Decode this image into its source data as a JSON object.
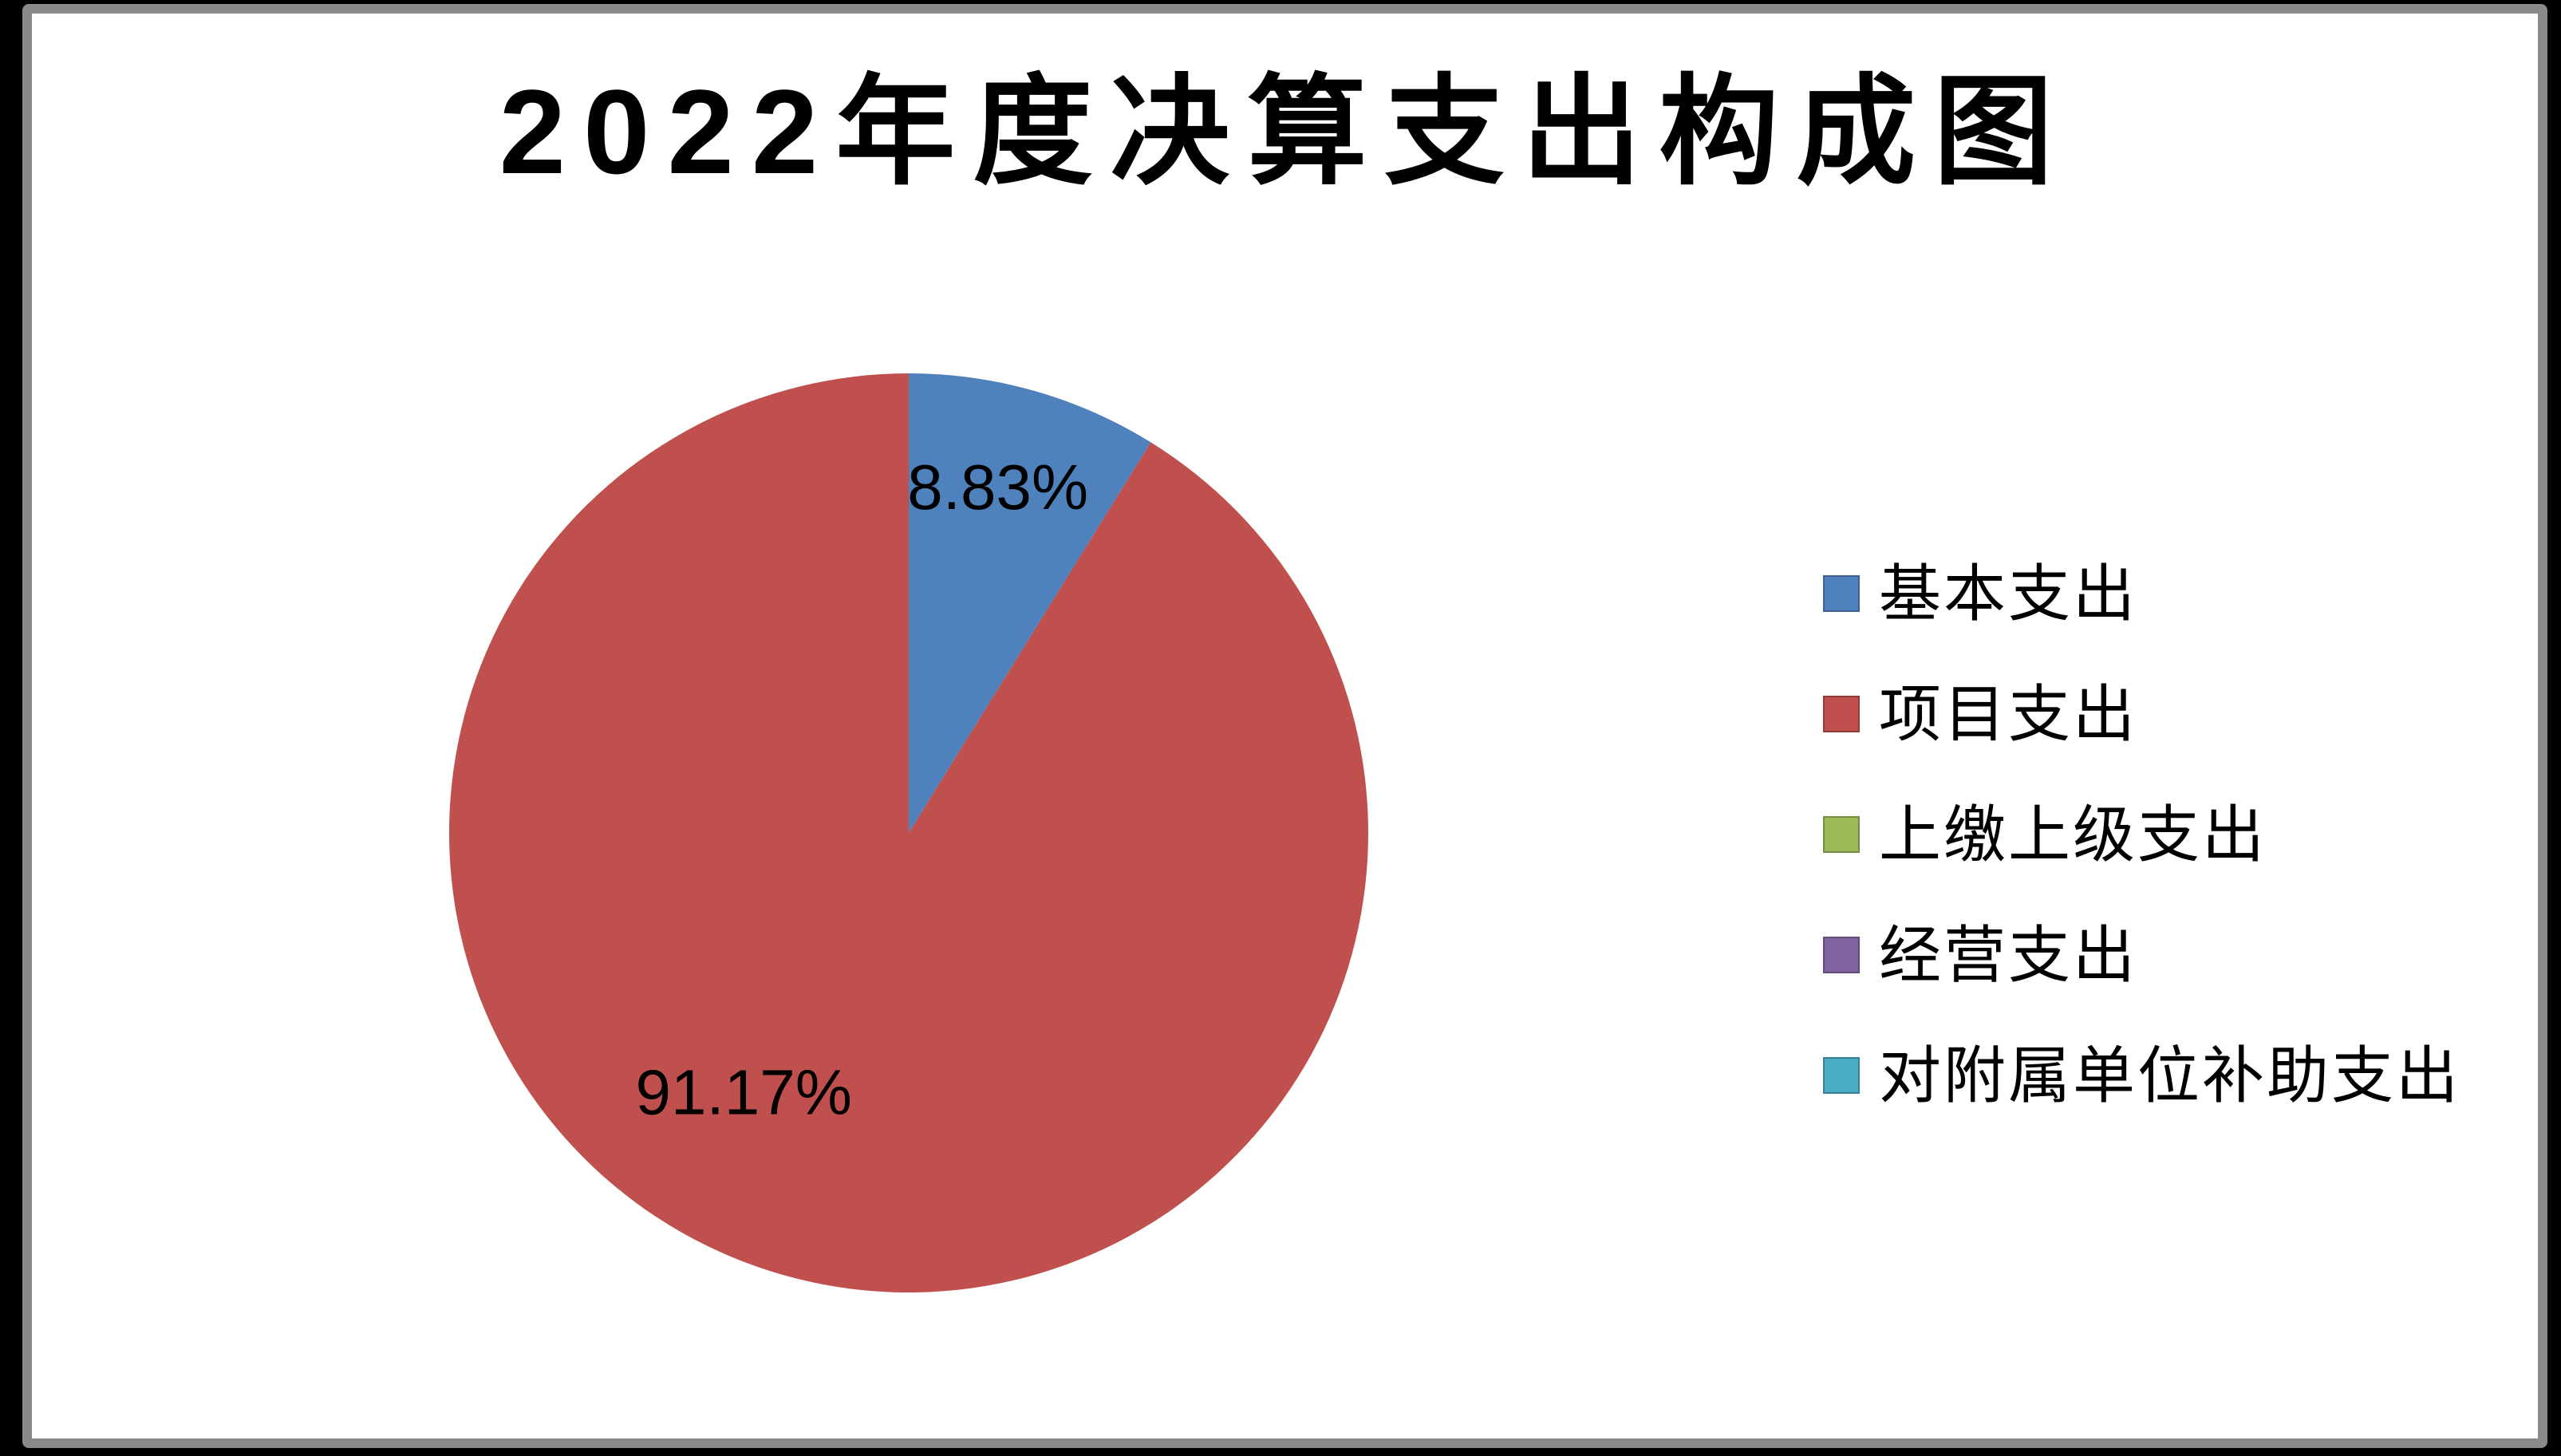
{
  "frame": {
    "page_background": "#000000",
    "chart_background": "#ffffff",
    "border_color": "#8a8a8a"
  },
  "chart_data": {
    "type": "pie",
    "title": "2022年度决算支出构成图",
    "legend_position": "right",
    "start_angle_deg": 0,
    "unit": "percent",
    "slices": [
      {
        "name": "基本支出",
        "value": 8.83,
        "percent_label": "8.83%",
        "color": "#4F81BD",
        "label_dx": 0.194,
        "label_dy": -0.753
      },
      {
        "name": "项目支出",
        "value": 91.17,
        "percent_label": "91.17%",
        "color": "#C0504D",
        "label_dx": -0.359,
        "label_dy": 0.564
      },
      {
        "name": "上缴上级支出",
        "value": 0,
        "color": "#9BBB59"
      },
      {
        "name": "经营支出",
        "value": 0,
        "color": "#8064A2"
      },
      {
        "name": "对附属单位补助支出",
        "value": 0,
        "color": "#4BACC6"
      }
    ]
  }
}
